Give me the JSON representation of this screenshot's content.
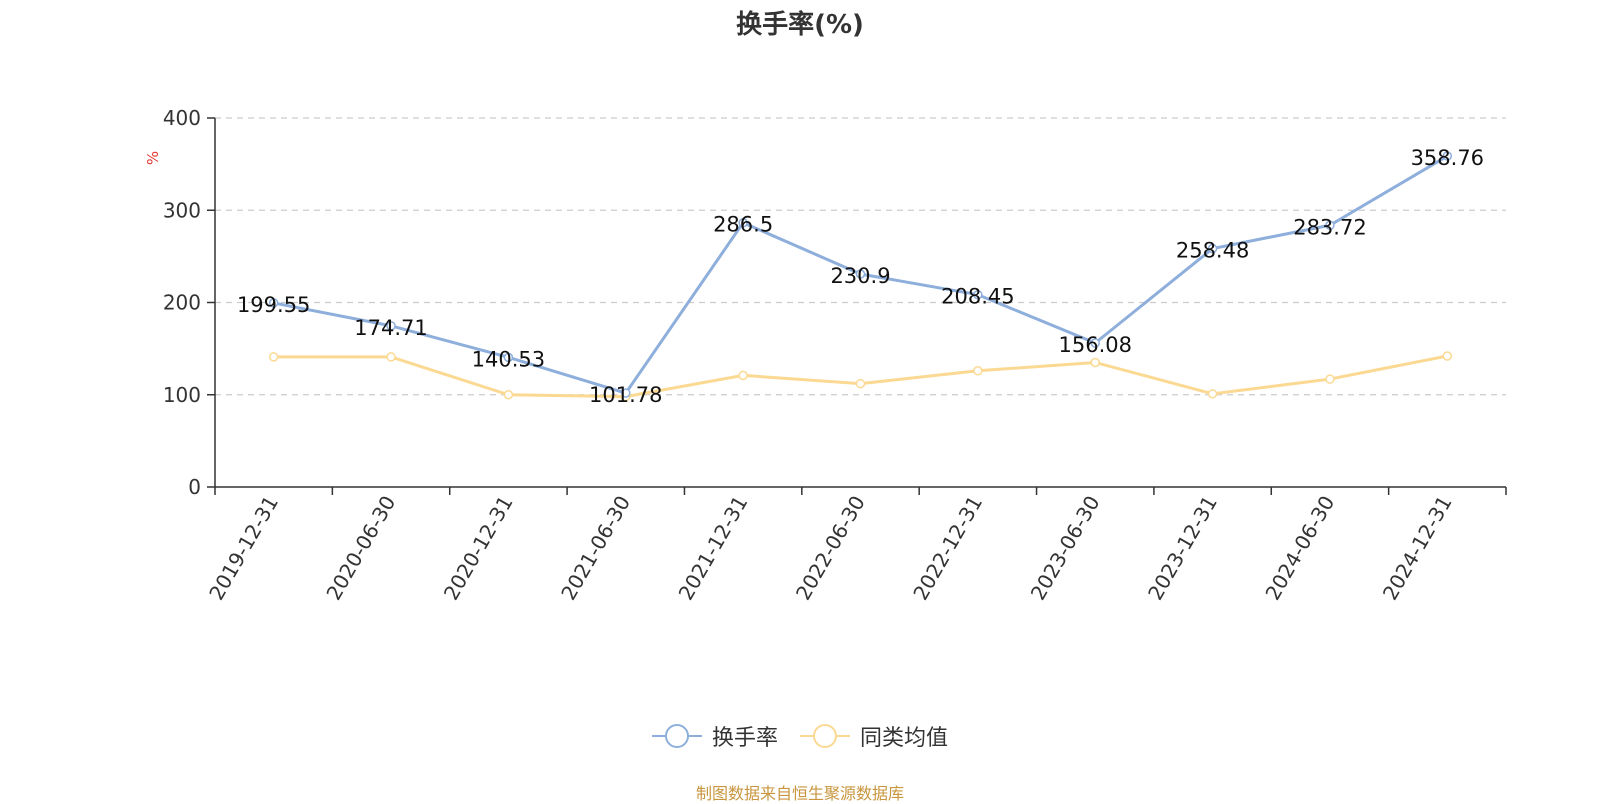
{
  "chart_data": {
    "type": "line",
    "title": "换手率(%)",
    "ylabel": "%",
    "ylim": [
      0,
      400
    ],
    "yticks": [
      0,
      100,
      200,
      300,
      400
    ],
    "grid": true,
    "legend_position": "bottom",
    "categories": [
      "2019-12-31",
      "2020-06-30",
      "2020-12-31",
      "2021-06-30",
      "2021-12-31",
      "2022-06-30",
      "2022-12-31",
      "2023-06-30",
      "2023-12-31",
      "2024-06-30",
      "2024-12-31"
    ],
    "series": [
      {
        "name": "换手率",
        "color": "#8eaedb",
        "values": [
          199.55,
          174.71,
          140.53,
          101.78,
          286.5,
          230.9,
          208.45,
          156.08,
          258.48,
          283.72,
          358.76
        ],
        "labels": [
          "199.55",
          "174.71",
          "140.53",
          "101.78",
          "286.5",
          "230.9",
          "208.45",
          "156.08",
          "258.48",
          "283.72",
          "358.76"
        ]
      },
      {
        "name": "同类均值",
        "color": "#fbd993",
        "values": [
          141,
          141,
          100,
          98,
          121,
          112,
          126,
          135,
          101,
          117,
          142
        ]
      }
    ]
  },
  "footer": {
    "source": "制图数据来自恒生聚源数据库"
  }
}
